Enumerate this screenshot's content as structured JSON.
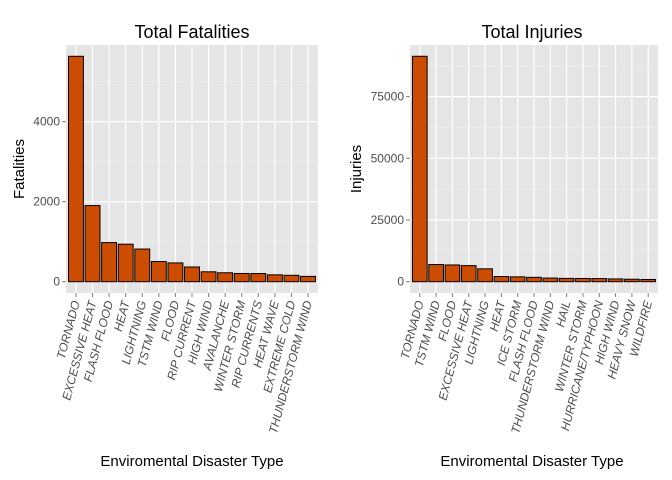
{
  "chart_data": [
    {
      "type": "bar",
      "title": "Total Fatalities",
      "xlabel": "Enviromental Disaster Type",
      "ylabel": "Fatalities",
      "categories": [
        "TORNADO",
        "EXCESSIVE HEAT",
        "FLASH FLOOD",
        "HEAT",
        "LIGHTNING",
        "TSTM WIND",
        "FLOOD",
        "RIP CURRENT",
        "HIGH WIND",
        "AVALANCHE",
        "WINTER STORM",
        "RIP CURRENTS",
        "HEAT WAVE",
        "EXTREME COLD",
        "THUNDERSTORM WIND"
      ],
      "values": [
        5633,
        1903,
        978,
        937,
        816,
        504,
        470,
        368,
        248,
        224,
        206,
        204,
        172,
        160,
        133
      ],
      "yticks": [
        0,
        2000,
        4000
      ],
      "ytick_labels": [
        "0",
        "2000",
        "4000"
      ],
      "ylim": [
        -282,
        5915
      ],
      "grid": true,
      "bar_color": "#cc4c02"
    },
    {
      "type": "bar",
      "title": "Total Injuries",
      "xlabel": "Enviromental Disaster Type",
      "ylabel": "Injuries",
      "categories": [
        "TORNADO",
        "TSTM WIND",
        "FLOOD",
        "EXCESSIVE HEAT",
        "LIGHTNING",
        "HEAT",
        "ICE STORM",
        "FLASH FLOOD",
        "THUNDERSTORM WIND",
        "HAIL",
        "WINTER STORM",
        "HURRICANE/TYPHOON",
        "HIGH WIND",
        "HEAVY SNOW",
        "WILDFIRE"
      ],
      "values": [
        91346,
        6957,
        6789,
        6525,
        5230,
        2100,
        1975,
        1777,
        1488,
        1361,
        1321,
        1275,
        1137,
        1021,
        911
      ],
      "yticks": [
        0,
        25000,
        50000,
        75000
      ],
      "ytick_labels": [
        "0",
        "25000",
        "50000",
        "75000"
      ],
      "ylim": [
        -4567,
        95913
      ],
      "grid": true,
      "bar_color": "#cc4c02"
    }
  ]
}
